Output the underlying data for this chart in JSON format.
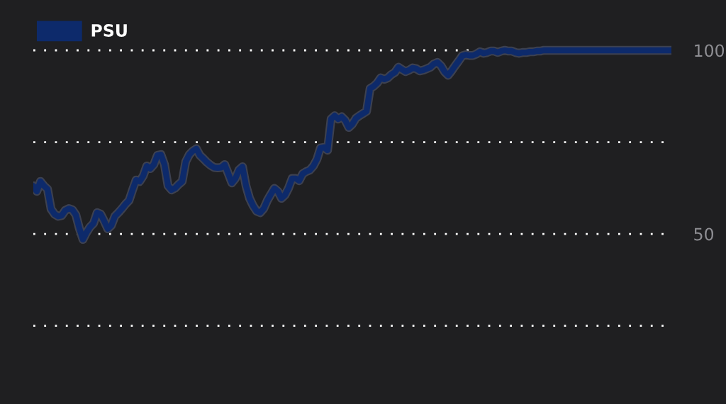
{
  "chart_data": {
    "type": "line",
    "categories": [
      null,
      null,
      null,
      null,
      null,
      null,
      null,
      null,
      null,
      null,
      null,
      null,
      null,
      null,
      null,
      null,
      null,
      null,
      null,
      null,
      null,
      null,
      null,
      null,
      null,
      null,
      null,
      null,
      null,
      null,
      null,
      null,
      null,
      null,
      null,
      null,
      null,
      null,
      null,
      null,
      null,
      null,
      null,
      null,
      null,
      null,
      null,
      null,
      null,
      null,
      null,
      null,
      null,
      null,
      null,
      null,
      null,
      null,
      null,
      null,
      null,
      null,
      null,
      null,
      null,
      null,
      null,
      null,
      null,
      null,
      null,
      null,
      null,
      null,
      null,
      null,
      null,
      null,
      null,
      null,
      null,
      null,
      null,
      null,
      null,
      null,
      null,
      null,
      null,
      null,
      null,
      null,
      null,
      null,
      null,
      null,
      null,
      null,
      null,
      null,
      null,
      null,
      null,
      null,
      null,
      null,
      null,
      null,
      null,
      null,
      null,
      null,
      null,
      null,
      null,
      null,
      null,
      null,
      null,
      null,
      null,
      null,
      null,
      null,
      null,
      null,
      null,
      null,
      null,
      null,
      null,
      null,
      null,
      null,
      null,
      null,
      null,
      null,
      null,
      null,
      null,
      null,
      null,
      null,
      null,
      null,
      null,
      null,
      null,
      null,
      null,
      null,
      null,
      null,
      null,
      null,
      null,
      null,
      null,
      null,
      null,
      null,
      null,
      null,
      null,
      null,
      null,
      null,
      null,
      null,
      null,
      null,
      null,
      null,
      null,
      null,
      null,
      null,
      null,
      null,
      null
    ],
    "series": [
      {
        "name": "PSU",
        "color": "#0d2a6b",
        "values": [
          63.1,
          61.6,
          64.3,
          63.1,
          62.2,
          56.8,
          55.4,
          54.8,
          55.0,
          56.4,
          56.9,
          56.6,
          55.2,
          51.5,
          48.5,
          50.4,
          51.9,
          52.9,
          55.8,
          55.4,
          53.5,
          51.4,
          52.3,
          54.8,
          55.8,
          56.9,
          58.1,
          59.1,
          62.0,
          64.7,
          64.3,
          65.8,
          68.5,
          67.8,
          68.9,
          71.4,
          71.6,
          68.9,
          63.1,
          62.0,
          62.5,
          63.5,
          64.3,
          69.7,
          71.6,
          72.6,
          73.2,
          71.4,
          70.5,
          69.5,
          68.7,
          68.1,
          68.0,
          68.1,
          68.9,
          66.4,
          63.9,
          65.1,
          67.4,
          68.3,
          63.1,
          59.7,
          57.7,
          56.2,
          55.8,
          56.9,
          59.1,
          60.8,
          62.4,
          61.6,
          59.7,
          60.6,
          62.5,
          65.1,
          65.1,
          64.5,
          66.4,
          67.0,
          67.4,
          68.5,
          70.3,
          73.4,
          73.6,
          72.8,
          81.3,
          82.2,
          81.3,
          81.9,
          80.9,
          79.0,
          79.9,
          81.5,
          82.2,
          82.8,
          83.4,
          89.6,
          90.2,
          91.1,
          92.5,
          92.1,
          92.5,
          93.4,
          94.0,
          95.4,
          94.8,
          94.2,
          94.6,
          95.2,
          95.0,
          94.4,
          94.6,
          95.0,
          95.4,
          96.3,
          96.7,
          95.8,
          94.2,
          93.2,
          94.4,
          95.8,
          97.1,
          98.5,
          98.8,
          98.6,
          98.6,
          99.0,
          99.6,
          99.2,
          99.4,
          99.8,
          99.8,
          99.4,
          99.8,
          100,
          99.8,
          99.8,
          99.4,
          99.2,
          99.4,
          99.4,
          99.6,
          99.6,
          99.8,
          99.8,
          100,
          100,
          100,
          100,
          100,
          100,
          100,
          100,
          100,
          100,
          100,
          100,
          100,
          100,
          100,
          100,
          100,
          100,
          100,
          100,
          100,
          100,
          100,
          100,
          100,
          100,
          100,
          100,
          100,
          100,
          100,
          100,
          100,
          100,
          100,
          100,
          100
        ]
      }
    ],
    "ylim": [
      3.7,
      113.7
    ],
    "yticks": [
      100,
      {
        "value": 75,
        "label": null
      },
      50,
      {
        "value": 25,
        "label": null
      }
    ],
    "grid": "y",
    "legend": "top left",
    "tick_labels": "y",
    "marker": "none",
    "line_style": "solid"
  }
}
